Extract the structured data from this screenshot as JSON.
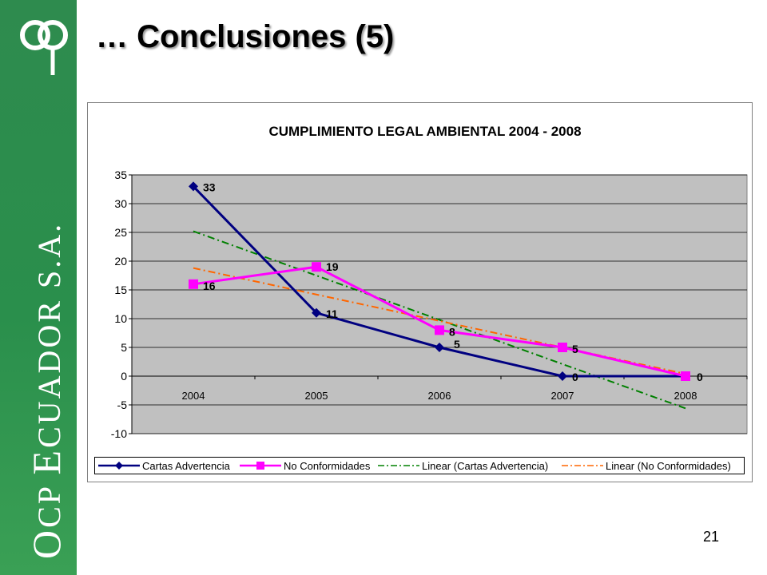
{
  "slide": {
    "title": "… Conclusiones (5)",
    "page_number": "21",
    "brand": {
      "first": "O",
      "cp": "CP ",
      "e": "E",
      "rest": "CUADOR S.A."
    },
    "colors": {
      "sidebar": "#2e8b4e"
    }
  },
  "chart_data": {
    "type": "line",
    "title": "CUMPLIMIENTO LEGAL AMBIENTAL 2004 - 2008",
    "categories": [
      "2004",
      "2005",
      "2006",
      "2007",
      "2008"
    ],
    "ylim": [
      -10,
      35
    ],
    "yticks": [
      35,
      30,
      25,
      20,
      15,
      10,
      5,
      0,
      -5,
      -10
    ],
    "grid": true,
    "plot_background": "#c0c0c0",
    "legend_position": "bottom",
    "series": [
      {
        "name": "Cartas Advertencia",
        "values": [
          33,
          11,
          5,
          0,
          0
        ],
        "labels": [
          "33",
          "11",
          "5",
          "0",
          ""
        ],
        "color": "#000080",
        "marker": "diamond"
      },
      {
        "name": "No Conformidades",
        "values": [
          16,
          19,
          8,
          5,
          0
        ],
        "labels": [
          "16",
          "19",
          "8",
          "5",
          "0"
        ],
        "color": "#ff00ff",
        "marker": "square"
      },
      {
        "name": "Linear (Cartas Advertencia)",
        "trend_of": 0,
        "color": "#008000",
        "style": "dash-dot"
      },
      {
        "name": "Linear (No Conformidades)",
        "trend_of": 1,
        "color": "#ff6600",
        "style": "dash-dot"
      }
    ]
  }
}
